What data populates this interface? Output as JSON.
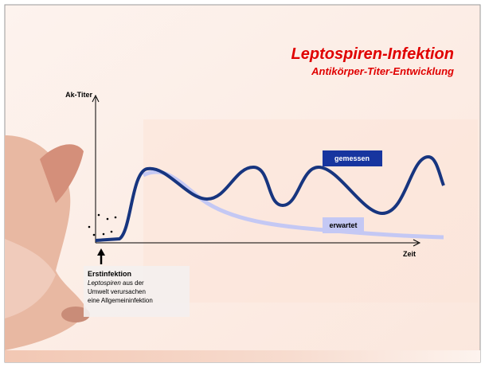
{
  "header": {
    "title": "Leptospiren-Infektion",
    "subtitle": "Antikörper-Titer-Entwicklung"
  },
  "diagram": {
    "y_axis_label": "Ak-Titer",
    "x_axis_label": "Zeit",
    "curves": [
      {
        "label": "gemessen"
      },
      {
        "label": "erwartet"
      }
    ],
    "note": {
      "heading": "Erstinfektion",
      "italic": "Leptospiren",
      "text_1": " aus der",
      "text_2": "Umwelt verursachen",
      "text_3": "eine Allgemeininfektion"
    }
  }
}
